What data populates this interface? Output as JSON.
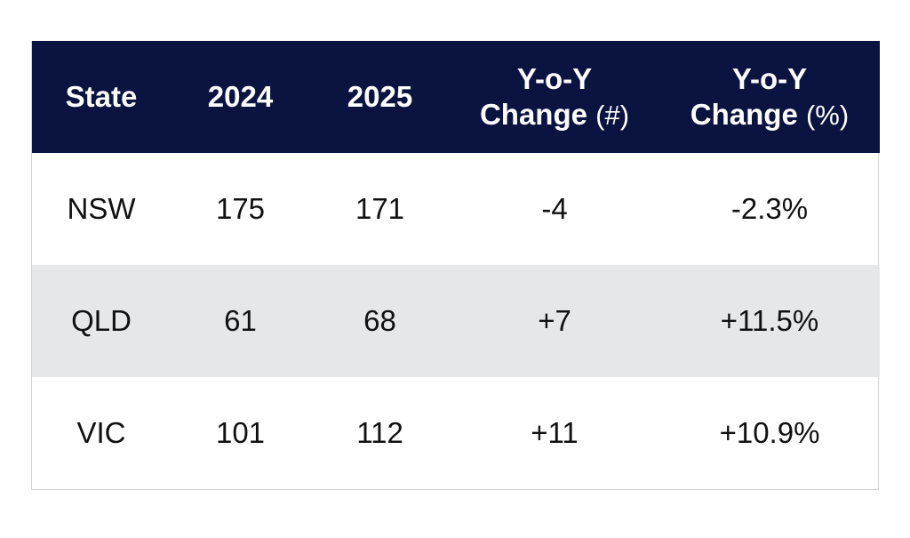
{
  "chart_data": {
    "type": "table",
    "columns": [
      {
        "line1": "State",
        "line2": "",
        "unit": ""
      },
      {
        "line1": "2024",
        "line2": "",
        "unit": ""
      },
      {
        "line1": "2025",
        "line2": "",
        "unit": ""
      },
      {
        "line1": "Y-o-Y",
        "line2": "Change",
        "unit": "(#)"
      },
      {
        "line1": "Y-o-Y",
        "line2": "Change",
        "unit": "(%)"
      }
    ],
    "rows": [
      [
        "NSW",
        "175",
        "171",
        "-4",
        "-2.3%"
      ],
      [
        "QLD",
        "61",
        "68",
        "+7",
        "+11.5%"
      ],
      [
        "VIC",
        "101",
        "112",
        "+11",
        "+10.9%"
      ]
    ],
    "header_color": "#0b1340",
    "stripe_color": "#e6e7e9"
  }
}
